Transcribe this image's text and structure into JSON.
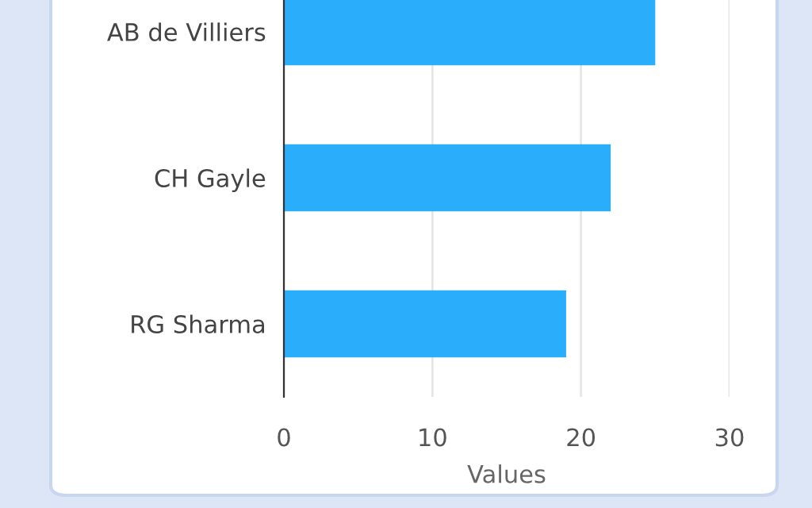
{
  "chart_data": {
    "type": "bar",
    "orientation": "horizontal",
    "xlabel": "Values",
    "categories": [
      "AB de Villiers",
      "CH Gayle",
      "RG Sharma"
    ],
    "values": [
      25,
      22,
      19
    ],
    "color": "#2aaefc",
    "xlim": [
      0,
      30
    ],
    "xticks": [
      0,
      10,
      20,
      30
    ],
    "grid": "x",
    "legend": false
  }
}
